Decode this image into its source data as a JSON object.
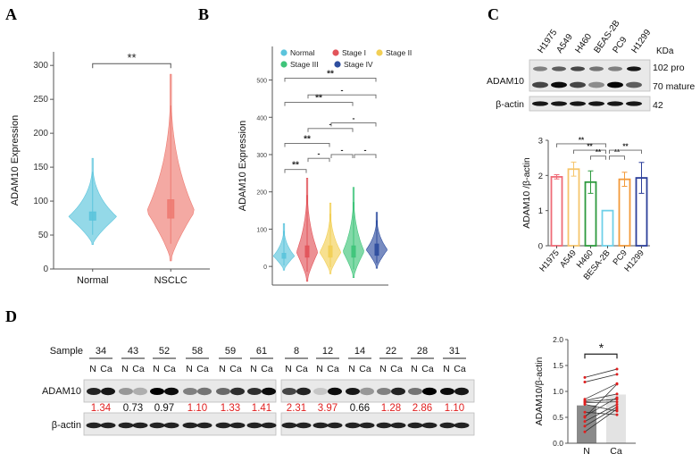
{
  "panels": {
    "A": {
      "label": "A"
    },
    "B": {
      "label": "B"
    },
    "C": {
      "label": "C"
    },
    "D": {
      "label": "D"
    }
  },
  "chart_data": [
    {
      "id": "A",
      "type": "violin",
      "ylabel": "ADAM10  Expression",
      "xlabel": "",
      "ylim": [
        0,
        320
      ],
      "yticks": [
        0,
        50,
        100,
        150,
        200,
        250,
        300
      ],
      "categories": [
        "Normal",
        "NSCLC"
      ],
      "colors": [
        "#5bc4dc",
        "#ee7b72"
      ],
      "median": [
        77,
        85
      ],
      "q1": [
        72,
        75
      ],
      "q3": [
        84,
        102
      ],
      "min": [
        36,
        12
      ],
      "max": [
        163,
        287
      ],
      "significance": [
        {
          "pair": [
            "Normal",
            "NSCLC"
          ],
          "label": "**"
        }
      ]
    },
    {
      "id": "B",
      "type": "violin",
      "ylabel": "ADAM10  Expression",
      "ylim": [
        -50,
        590
      ],
      "yticks": [
        0,
        100,
        200,
        300,
        400,
        500
      ],
      "categories": [
        "Normal",
        "Stage I",
        "Stage II",
        "Stage III",
        "Stage IV"
      ],
      "legend": [
        "Normal",
        "Stage I",
        "Stage II",
        "Stage III",
        "Stage IV"
      ],
      "legend_position": "top",
      "colors": [
        "#5bc4dc",
        "#e2545a",
        "#f2cf55",
        "#3fc47a",
        "#2f4e9f"
      ],
      "median": [
        28,
        38,
        38,
        40,
        45
      ],
      "q1": [
        22,
        25,
        25,
        25,
        30
      ],
      "q3": [
        35,
        55,
        55,
        55,
        60
      ],
      "min": [
        -10,
        -40,
        -20,
        -30,
        -5
      ],
      "max": [
        115,
        237,
        170,
        212,
        145
      ],
      "significance": [
        {
          "pair": [
            "Normal",
            "Stage I"
          ],
          "label": "**"
        },
        {
          "pair": [
            "Stage I",
            "Stage II"
          ],
          "label": "-"
        },
        {
          "pair": [
            "Stage II",
            "Stage III"
          ],
          "label": "-"
        },
        {
          "pair": [
            "Stage III",
            "Stage IV"
          ],
          "label": "-"
        },
        {
          "pair": [
            "Normal",
            "Stage II"
          ],
          "label": "**"
        },
        {
          "pair": [
            "Stage I",
            "Stage III"
          ],
          "label": "-"
        },
        {
          "pair": [
            "Stage II",
            "Stage IV"
          ],
          "label": "-"
        },
        {
          "pair": [
            "Normal",
            "Stage III"
          ],
          "label": "**"
        },
        {
          "pair": [
            "Stage I",
            "Stage IV"
          ],
          "label": "-"
        },
        {
          "pair": [
            "Normal",
            "Stage IV"
          ],
          "label": "**"
        }
      ]
    },
    {
      "id": "C-bar",
      "type": "bar",
      "ylabel": "ADAM10 /β-actin",
      "ylim": [
        0,
        3
      ],
      "yticks": [
        0,
        1,
        2,
        3
      ],
      "categories": [
        "H1975",
        "A549",
        "H460",
        "BESA-2B",
        "PC9",
        "H1299"
      ],
      "values": [
        1.96,
        2.18,
        1.81,
        1.0,
        1.89,
        1.93
      ],
      "errors": [
        0.06,
        0.2,
        0.32,
        0.0,
        0.2,
        0.44
      ],
      "colors": [
        "#ef6b77",
        "#f6c56b",
        "#2e9a3e",
        "#6fd0e8",
        "#f39a3a",
        "#2c3f9a"
      ],
      "significance": [
        {
          "pair": [
            "H1975",
            "BESA-2B"
          ],
          "label": "**"
        },
        {
          "pair": [
            "A549",
            "BESA-2B"
          ],
          "label": "**"
        },
        {
          "pair": [
            "H460",
            "BESA-2B"
          ],
          "label": "**"
        },
        {
          "pair": [
            "BESA-2B",
            "PC9"
          ],
          "label": "**"
        },
        {
          "pair": [
            "BESA-2B",
            "H1299"
          ],
          "label": "**"
        }
      ]
    },
    {
      "id": "D-paired",
      "type": "bar",
      "ylabel": "ADAM10/β-actin",
      "ylim": [
        0,
        2.0
      ],
      "yticks": [
        "0.0",
        "0.5",
        "1.0",
        "1.5",
        "2.0"
      ],
      "categories": [
        "N",
        "Ca"
      ],
      "values": [
        0.73,
        0.94
      ],
      "colors": [
        "#8a8a8a",
        "#e3e3e3"
      ],
      "pairs": [
        [
          1.27,
          1.43
        ],
        [
          1.18,
          1.33
        ],
        [
          0.85,
          1.15
        ],
        [
          0.82,
          0.95
        ],
        [
          0.8,
          0.85
        ],
        [
          0.78,
          0.8
        ],
        [
          0.75,
          0.62
        ],
        [
          0.6,
          0.55
        ],
        [
          0.52,
          0.88
        ],
        [
          0.5,
          1.14
        ],
        [
          0.42,
          0.75
        ],
        [
          0.33,
          0.7
        ],
        [
          0.22,
          0.66
        ]
      ],
      "significance": [
        {
          "pair": [
            "N",
            "Ca"
          ],
          "label": "*"
        }
      ]
    }
  ],
  "blotC": {
    "cell_lines": [
      "H1975",
      "A549",
      "H460",
      "BEAS-2B",
      "PC9",
      "H1299"
    ],
    "row_labels": [
      "ADAM10",
      "β-actin"
    ],
    "kda_header": "KDa",
    "kda": [
      "102 pro",
      "70 mature",
      "42"
    ]
  },
  "blotD": {
    "sample_label": "Sample",
    "row_labels": [
      "ADAM10",
      "β-actin"
    ],
    "samples": [
      {
        "id": "34",
        "ratio": "1.34",
        "up": true
      },
      {
        "id": "43",
        "ratio": "0.73",
        "up": false
      },
      {
        "id": "52",
        "ratio": "0.97",
        "up": false
      },
      {
        "id": "58",
        "ratio": "1.10",
        "up": true
      },
      {
        "id": "59",
        "ratio": "1.33",
        "up": true
      },
      {
        "id": "61",
        "ratio": "1.41",
        "up": true
      },
      {
        "id": "8",
        "ratio": "2.31",
        "up": true
      },
      {
        "id": "12",
        "ratio": "3.97",
        "up": true
      },
      {
        "id": "14",
        "ratio": "0.66",
        "up": false
      },
      {
        "id": "22",
        "ratio": "1.28",
        "up": true
      },
      {
        "id": "28",
        "ratio": "2.86",
        "up": true
      },
      {
        "id": "31",
        "ratio": "1.10",
        "up": true
      }
    ],
    "lane_labels": [
      "N",
      "Ca"
    ],
    "up_color": "#e01e1e",
    "down_color": "#111111"
  }
}
